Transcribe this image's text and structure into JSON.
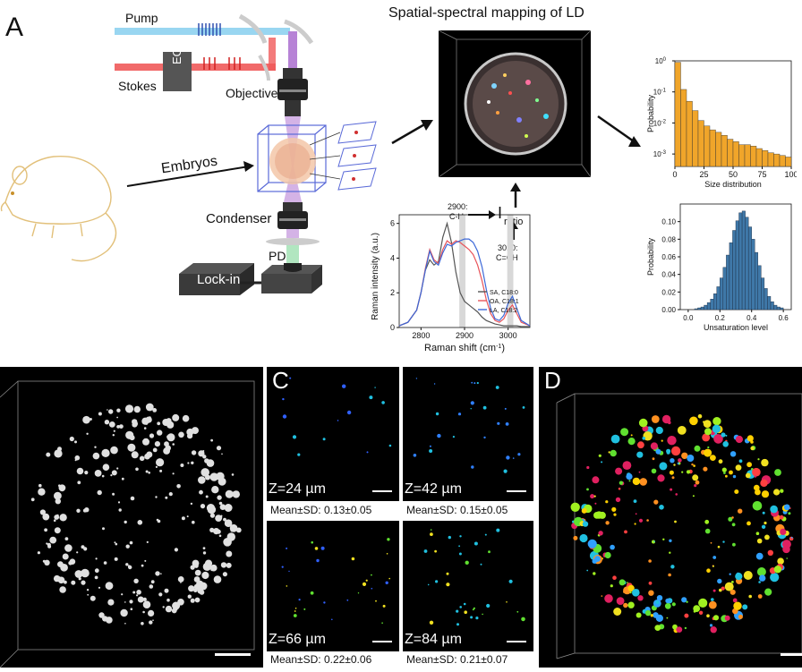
{
  "panel_a": {
    "letter": "A",
    "title": "Spatial-spectral mapping of LD",
    "labels": {
      "pump": "Pump",
      "stokes": "Stokes",
      "eom": "EOM",
      "objective": "Objective",
      "embryos": "Embryos",
      "condenser": "Condenser",
      "lockin": "Lock-in",
      "pd": "PD",
      "peak_ch": "2900:\nC-H",
      "peak_ch_line1": "2900:",
      "peak_ch_line2": "C-H",
      "peak_cch_line1": "3010:",
      "peak_cch_line2": "C=CH",
      "iratio_main": "I",
      "iratio_sub": "ratio"
    }
  },
  "panel_b_letter": "",
  "panel_c": {
    "letter": "C",
    "tiles": [
      {
        "z": "Z=24 µm",
        "caption": "Mean±SD: 0.13±0.05"
      },
      {
        "z": "Z=42 µm",
        "caption": "Mean±SD: 0.15±0.05"
      },
      {
        "z": "Z=66 µm",
        "caption": "Mean±SD: 0.22±0.06"
      },
      {
        "z": "Z=84 µm",
        "caption": "Mean±SD: 0.21±0.07"
      }
    ]
  },
  "panel_d": {
    "letter": "D"
  },
  "colors": {
    "pump": "#8ed2f0",
    "stokes": "#f05a5a",
    "beam": "#b783d6",
    "hist": "#f0a52a",
    "hist2": "#3f78a8",
    "sa": "#555555",
    "oa": "#e8545a",
    "la": "#3c68d8"
  },
  "chart_data": [
    {
      "type": "line",
      "xlabel": "Raman shift (cm",
      "xlabel_sup": "-1",
      "xlabel_end": ")",
      "ylabel": "Raman intensity (a.u.)",
      "xlim": [
        2750,
        3050
      ],
      "ylim": [
        0,
        6.5
      ],
      "x_ticks": [
        "2800",
        "2900",
        "3000"
      ],
      "y_ticks": [
        "0",
        "2",
        "4",
        "6"
      ],
      "legend_placement": "bottom-right",
      "x": [
        2750,
        2770,
        2790,
        2800,
        2810,
        2820,
        2830,
        2840,
        2850,
        2860,
        2870,
        2880,
        2890,
        2900,
        2910,
        2920,
        2930,
        2940,
        2950,
        2960,
        2970,
        2980,
        2990,
        3000,
        3010,
        3020,
        3030,
        3050
      ],
      "series": [
        {
          "name": "SA, C18:0",
          "values": [
            0.1,
            0.3,
            1.0,
            2.0,
            3.3,
            3.9,
            3.6,
            3.8,
            5.2,
            6.0,
            4.9,
            3.2,
            2.0,
            1.5,
            1.3,
            1.1,
            0.9,
            0.6,
            0.4,
            0.3,
            0.2,
            0.15,
            0.1,
            0.1,
            0.1,
            0.1,
            0.05,
            0.05
          ]
        },
        {
          "name": "OA, C18:1",
          "values": [
            0.1,
            0.3,
            1.0,
            2.0,
            3.4,
            4.5,
            3.9,
            3.7,
            4.5,
            5.0,
            4.8,
            5.0,
            4.9,
            4.7,
            4.5,
            4.2,
            3.6,
            2.7,
            1.6,
            0.8,
            0.4,
            0.3,
            0.5,
            1.0,
            1.3,
            0.8,
            0.3,
            0.1
          ]
        },
        {
          "name": "LA, C18:2",
          "values": [
            0.1,
            0.3,
            1.0,
            2.0,
            3.3,
            4.4,
            3.8,
            3.6,
            4.3,
            4.8,
            4.7,
            4.9,
            5.0,
            5.1,
            5.1,
            4.9,
            4.4,
            3.5,
            2.2,
            1.1,
            0.5,
            0.4,
            0.7,
            1.4,
            1.8,
            1.1,
            0.4,
            0.1
          ]
        }
      ]
    },
    {
      "type": "bar",
      "xlabel": "Size distribution",
      "ylabel": "Probability",
      "ylog": true,
      "y_ticks": [
        "10",
        "10",
        "10",
        "10"
      ],
      "y_tick_exps": [
        "0",
        "-1",
        "-2",
        "-3"
      ],
      "x_ticks": [
        "0",
        "25",
        "50",
        "75",
        "100"
      ],
      "xlim": [
        0,
        100
      ],
      "bin_width": 5,
      "values": [
        0.9,
        0.12,
        0.05,
        0.025,
        0.012,
        0.008,
        0.006,
        0.005,
        0.004,
        0.003,
        0.0025,
        0.002,
        0.002,
        0.0018,
        0.0015,
        0.0013,
        0.0011,
        0.001,
        0.0009,
        0.0008
      ]
    },
    {
      "type": "bar",
      "xlabel": "Unsaturation level",
      "ylabel": "Probability",
      "x_ticks": [
        "0.0",
        "0.2",
        "0.4",
        "0.6"
      ],
      "y_ticks": [
        "0.00",
        "0.02",
        "0.04",
        "0.06",
        "0.08",
        "0.10"
      ],
      "xlim": [
        -0.05,
        0.65
      ],
      "ylim": [
        0,
        0.12
      ],
      "bin_width": 0.02,
      "bin_start": 0.04,
      "values": [
        0.001,
        0.002,
        0.003,
        0.005,
        0.008,
        0.012,
        0.018,
        0.026,
        0.036,
        0.048,
        0.062,
        0.076,
        0.09,
        0.101,
        0.11,
        0.112,
        0.105,
        0.094,
        0.08,
        0.065,
        0.05,
        0.036,
        0.024,
        0.015,
        0.009,
        0.005,
        0.003,
        0.002
      ]
    }
  ]
}
